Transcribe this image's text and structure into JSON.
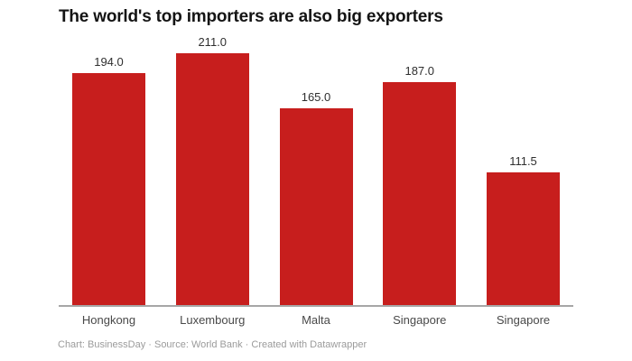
{
  "footer": {
    "text": "Chart: BusinessDay · Source: World Bank · Created with Datawrapper"
  },
  "colors": {
    "bar": "#c71e1d",
    "axis_line": "#a6a6a6",
    "title_text": "#141414",
    "value_label_text": "#2f2f2f",
    "category_label_text": "#494949",
    "footer_text": "#9b9b9b",
    "background": "#ffffff"
  },
  "chart_data": {
    "type": "bar",
    "title": "The world's top importers are also big exporters",
    "categories": [
      "Hongkong",
      "Luxembourg",
      "Malta",
      "Singapore",
      "Singapore"
    ],
    "values": [
      194.0,
      211.0,
      165.0,
      187.0,
      111.5
    ],
    "value_labels": [
      "194.0",
      "211.0",
      "165.0",
      "187.0",
      "111.5"
    ],
    "xlabel": "",
    "ylabel": "",
    "ylim": [
      0,
      223
    ],
    "grid": false,
    "legend": false,
    "value_labels_position": "above-bar",
    "baseline_axis": true
  }
}
